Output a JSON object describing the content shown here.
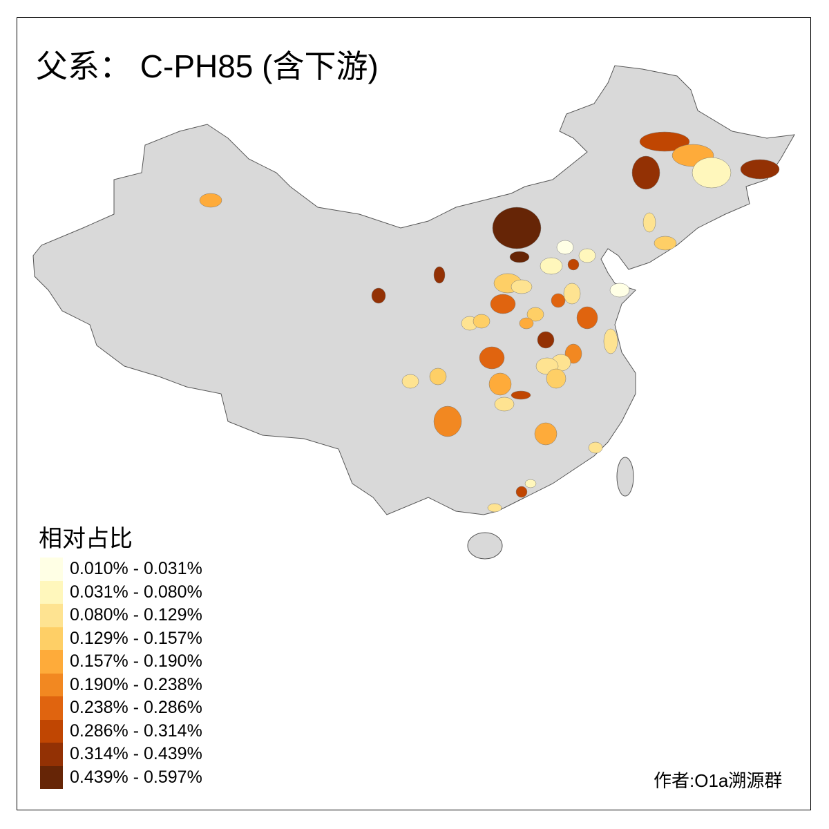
{
  "title": "父系： C-PH85 (含下游)",
  "legend": {
    "title": "相对占比",
    "classes": [
      {
        "label": "0.010% - 0.031%",
        "color": "#FFFFE5"
      },
      {
        "label": "0.031% - 0.080%",
        "color": "#FFF7BC"
      },
      {
        "label": "0.080% - 0.129%",
        "color": "#FEE391"
      },
      {
        "label": "0.129% - 0.157%",
        "color": "#FECF66"
      },
      {
        "label": "0.157% - 0.190%",
        "color": "#FEAB3A"
      },
      {
        "label": "0.190% - 0.238%",
        "color": "#F28821"
      },
      {
        "label": "0.238% - 0.286%",
        "color": "#E0640F"
      },
      {
        "label": "0.286% - 0.314%",
        "color": "#C04602"
      },
      {
        "label": "0.314% - 0.439%",
        "color": "#933104"
      },
      {
        "label": "0.439% - 0.597%",
        "color": "#662506"
      }
    ]
  },
  "map": {
    "base_color": "#D9D9D9",
    "border_color": "#555555"
  },
  "credit": "作者:O1a溯源群"
}
